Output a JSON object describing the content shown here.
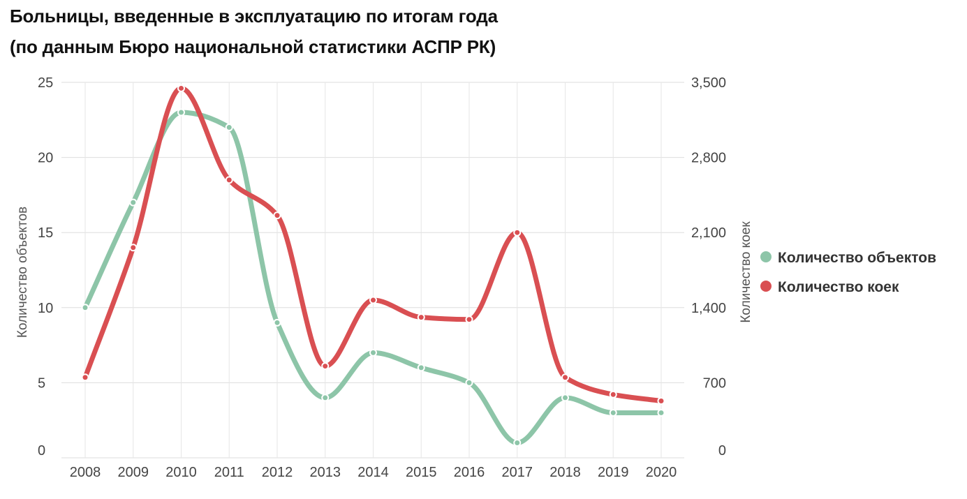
{
  "title_line1": "Больницы, введенные в эксплуатацию по итогам года",
  "title_line2": "(по данным Бюро национальной статистики АСПР РК)",
  "chart_data": {
    "type": "line",
    "x": [
      "2008",
      "2009",
      "2010",
      "2011",
      "2012",
      "2013",
      "2014",
      "2015",
      "2016",
      "2017",
      "2018",
      "2019",
      "2020"
    ],
    "series": [
      {
        "name": "Количество объектов",
        "axis": "left",
        "color": "#8dc5a8",
        "values": [
          10,
          17,
          23,
          22,
          9,
          4,
          7,
          6,
          5,
          1,
          4,
          3,
          3
        ]
      },
      {
        "name": "Количество коек",
        "axis": "right",
        "color": "#d94f52",
        "values": [
          750,
          1960,
          3445,
          2590,
          2260,
          855,
          1470,
          1310,
          1290,
          2100,
          750,
          590,
          530
        ]
      }
    ],
    "ylabel_left": "Количество объектов",
    "ylabel_right": "Количество коек",
    "ylim_left": [
      0,
      25
    ],
    "ylim_right": [
      0,
      3500
    ],
    "yticks_left": [
      0,
      5,
      10,
      15,
      20,
      25
    ],
    "yticks_right": [
      "0",
      "700",
      "1,400",
      "2,100",
      "2,800",
      "3,500"
    ],
    "grid": true,
    "legend_position": "right"
  }
}
